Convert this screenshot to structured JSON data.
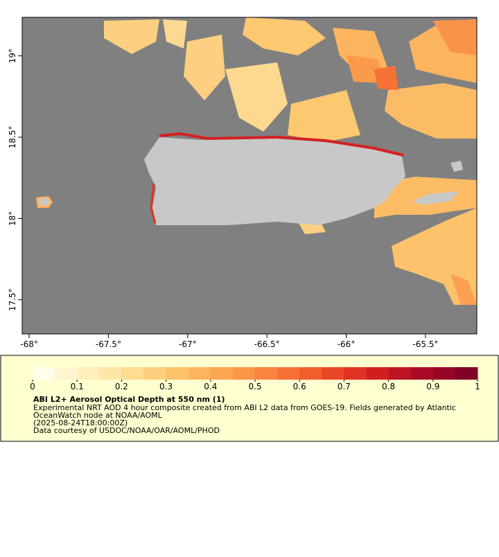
{
  "map": {
    "xlim": [
      -68.044,
      -65.176
    ],
    "ylim": [
      17.29,
      19.237
    ],
    "xticks": [
      {
        "value": -68,
        "label": "-68°"
      },
      {
        "value": -67.5,
        "label": "-67.5°"
      },
      {
        "value": -67,
        "label": "-67°"
      },
      {
        "value": -66.5,
        "label": "-66.5°"
      },
      {
        "value": -66,
        "label": "-66°"
      },
      {
        "value": -65.5,
        "label": "-65.5°"
      }
    ],
    "yticks": [
      {
        "value": 17.5,
        "label": "17.5°"
      },
      {
        "value": 18,
        "label": "18°"
      },
      {
        "value": 18.5,
        "label": "18.5°"
      },
      {
        "value": 19,
        "label": "19°"
      }
    ],
    "colorbar": {
      "range": [
        0,
        1
      ],
      "ticks": [
        0,
        0.1,
        0.2,
        0.3,
        0.4,
        0.5,
        0.6,
        0.7,
        0.8,
        0.9,
        1
      ],
      "colors": [
        "#fffde8",
        "#fff6d0",
        "#ffefbb",
        "#fee6a6",
        "#fedc92",
        "#fdd07e",
        "#fcc26c",
        "#fcb45e",
        "#fca552",
        "#fb9548",
        "#f9843f",
        "#f67136",
        "#f25d2e",
        "#ea4727",
        "#e03222",
        "#d12020",
        "#bf1424",
        "#aa0c26",
        "#950626",
        "#800026"
      ]
    }
  },
  "legend": {
    "title": "ABI L2+ Aerosol Optical Depth at 550 nm (1)",
    "lines": [
      "Experimental NRT AOD 4 hour composite created from ABI L2 data from GOES-19. Fields generated by Atlantic",
      "OceanWatch node at NOAA/AOML",
      "(2025-08-24T18:00:00Z)",
      "Data courtesy of USDOC/NOAA/OAR/AOML/PHOD"
    ]
  }
}
